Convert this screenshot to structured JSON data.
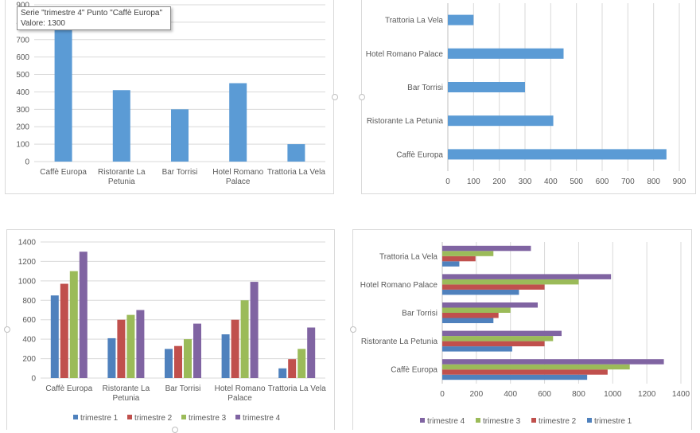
{
  "tooltip": {
    "line1": "Serie \"trimestre 4\" Punto \"Caffè Europa\"",
    "line2": "Valore: 1300"
  },
  "colors": {
    "single": "#5b9bd5",
    "trimestre 1": "#4f81bd",
    "trimestre 2": "#c0504d",
    "trimestre 3": "#9bbb59",
    "trimestre 4": "#8064a2"
  },
  "chart_data": [
    {
      "type": "bar",
      "orientation": "vertical",
      "categories": [
        "Caffè Europa",
        "Ristorante La Petunia",
        "Bar Torrisi",
        "Hotel Romano Palace",
        "Trattoria La Vela"
      ],
      "series": [
        {
          "values": [
            850,
            410,
            300,
            450,
            100
          ]
        }
      ],
      "ylim": [
        0,
        900
      ],
      "yticks": [
        "0",
        "100",
        "200",
        "300",
        "400",
        "500",
        "600",
        "700",
        "800",
        "900"
      ],
      "grid": true
    },
    {
      "type": "bar",
      "orientation": "horizontal",
      "categories": [
        "Caffè Europa",
        "Ristorante La Petunia",
        "Bar Torrisi",
        "Hotel Romano Palace",
        "Trattoria La Vela"
      ],
      "series": [
        {
          "values": [
            850,
            410,
            300,
            450,
            100
          ]
        }
      ],
      "xlim": [
        0,
        900
      ],
      "xticks": [
        "0",
        "100",
        "200",
        "300",
        "400",
        "500",
        "600",
        "700",
        "800",
        "900"
      ],
      "grid": true
    },
    {
      "type": "bar",
      "orientation": "vertical",
      "categories": [
        "Caffè Europa",
        "Ristorante La Petunia",
        "Bar Torrisi",
        "Hotel Romano Palace",
        "Trattoria La Vela"
      ],
      "series": [
        {
          "name": "trimestre 1",
          "values": [
            850,
            410,
            300,
            450,
            100
          ]
        },
        {
          "name": "trimestre 2",
          "values": [
            970,
            600,
            330,
            600,
            195
          ]
        },
        {
          "name": "trimestre 3",
          "values": [
            1100,
            650,
            400,
            800,
            300
          ]
        },
        {
          "name": "trimestre 4",
          "values": [
            1300,
            700,
            560,
            990,
            520
          ]
        }
      ],
      "ylim": [
        0,
        1400
      ],
      "yticks": [
        "0",
        "200",
        "400",
        "600",
        "800",
        "1000",
        "1200",
        "1400"
      ],
      "legend": "bottom",
      "grid": true
    },
    {
      "type": "bar",
      "orientation": "horizontal",
      "categories": [
        "Caffè Europa",
        "Ristorante La Petunia",
        "Bar Torrisi",
        "Hotel Romano Palace",
        "Trattoria La Vela"
      ],
      "series": [
        {
          "name": "trimestre 1",
          "values": [
            850,
            410,
            300,
            450,
            100
          ]
        },
        {
          "name": "trimestre 2",
          "values": [
            970,
            600,
            330,
            600,
            195
          ]
        },
        {
          "name": "trimestre 3",
          "values": [
            1100,
            650,
            400,
            800,
            300
          ]
        },
        {
          "name": "trimestre 4",
          "values": [
            1300,
            700,
            560,
            990,
            520
          ]
        }
      ],
      "xlim": [
        0,
        1400
      ],
      "xticks": [
        "0",
        "200",
        "400",
        "600",
        "800",
        "1000",
        "1200",
        "1400"
      ],
      "legend": "bottom",
      "legend_order": [
        "trimestre 4",
        "trimestre 3",
        "trimestre 2",
        "trimestre 1"
      ],
      "grid": true
    }
  ]
}
